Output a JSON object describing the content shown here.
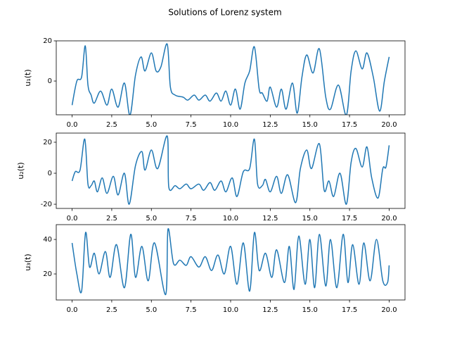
{
  "title": "Solutions of Lorenz system",
  "chart_data": [
    {
      "type": "line",
      "ylabel": "u₁(t)",
      "color": "#1f77b4",
      "xlim": [
        -1,
        21
      ],
      "ylim": [
        -16.8,
        20
      ],
      "xticks": [
        {
          "value": 0,
          "label": "0.0"
        },
        2.5,
        {
          "value": 5,
          "label": "5.0"
        },
        7.5,
        {
          "value": 10,
          "label": "10.0"
        },
        12.5,
        {
          "value": 15,
          "label": "15.0"
        },
        17.5,
        {
          "value": 20,
          "label": "20.0"
        }
      ],
      "yticks": [
        0,
        20
      ],
      "x": [
        0,
        0.3,
        0.6,
        0.83,
        1.0,
        1.2,
        1.4,
        1.8,
        2.2,
        2.5,
        2.9,
        3.3,
        3.65,
        4.0,
        4.35,
        4.6,
        5.0,
        5.3,
        5.6,
        6.0,
        6.2,
        6.5,
        7.0,
        7.3,
        7.7,
        8.0,
        8.4,
        8.7,
        9.1,
        9.4,
        9.7,
        10.0,
        10.3,
        10.6,
        10.9,
        11.2,
        11.5,
        11.8,
        12.0,
        12.3,
        12.5,
        12.9,
        13.2,
        13.5,
        13.9,
        14.2,
        14.5,
        14.8,
        15.2,
        15.6,
        16.0,
        16.3,
        16.8,
        17.3,
        17.6,
        17.9,
        18.3,
        18.6,
        19.0,
        19.4,
        19.7,
        20.0
      ],
      "values": [
        -12,
        0,
        2,
        17.5,
        -2,
        -7,
        -11,
        -5,
        -12,
        -4,
        -13,
        -1,
        -17,
        3,
        12,
        5,
        14,
        5,
        7,
        18.4,
        -3,
        -7,
        -8,
        -9.5,
        -7,
        -9.5,
        -7,
        -10,
        -6,
        -10,
        -5,
        -12,
        -4,
        -14,
        -1,
        5,
        17,
        -4,
        -6,
        -10,
        -3,
        -13,
        -4,
        -14,
        -1,
        -16,
        2,
        13,
        4,
        16,
        -8,
        -14,
        -2,
        -17,
        5,
        15,
        6,
        14,
        2,
        -15,
        0,
        12
      ]
    },
    {
      "type": "line",
      "ylabel": "u₂(t)",
      "color": "#1f77b4",
      "xlim": [
        -1,
        21
      ],
      "ylim": [
        -22.7,
        25.9
      ],
      "xticks": [
        {
          "value": 0,
          "label": "0.0"
        },
        2.5,
        {
          "value": 5,
          "label": "5.0"
        },
        7.5,
        {
          "value": 10,
          "label": "10.0"
        },
        12.5,
        {
          "value": 15,
          "label": "15.0"
        },
        17.5,
        {
          "value": 20,
          "label": "20.0"
        }
      ],
      "yticks": [
        -20,
        0,
        20
      ],
      "x": [
        0,
        0.2,
        0.5,
        0.8,
        1.0,
        1.2,
        1.4,
        1.6,
        1.9,
        2.2,
        2.6,
        2.9,
        3.3,
        3.6,
        4.0,
        4.4,
        4.6,
        5.0,
        5.4,
        6.0,
        6.1,
        6.5,
        6.8,
        7.2,
        7.5,
        8.0,
        8.3,
        8.7,
        9.0,
        9.4,
        9.7,
        10.1,
        10.4,
        10.8,
        11.2,
        11.5,
        11.7,
        12.0,
        12.2,
        12.5,
        12.9,
        13.2,
        13.6,
        14.1,
        14.4,
        14.8,
        15.1,
        15.6,
        15.9,
        16.2,
        16.5,
        16.9,
        17.3,
        17.6,
        17.9,
        18.3,
        18.6,
        18.9,
        19.3,
        19.6,
        19.8,
        20.0
      ],
      "values": [
        -5,
        1,
        2,
        22,
        -7,
        -8,
        -5,
        -12,
        -3,
        -13,
        -2,
        -14,
        0,
        -20,
        5,
        14,
        2,
        15,
        3,
        24,
        -9,
        -8,
        -10,
        -7,
        -10,
        -7,
        -11,
        -6,
        -11,
        -5,
        -12,
        -3,
        -15,
        1,
        3,
        22,
        -7,
        -8,
        -4,
        -12,
        -2,
        -13,
        -1,
        -19,
        3,
        15,
        3,
        19,
        -11,
        -5,
        -15,
        0,
        -20,
        7,
        16,
        4,
        17,
        -3,
        -16,
        3,
        4,
        18
      ]
    },
    {
      "type": "line",
      "ylabel": "u₃(t)",
      "color": "#1f77b4",
      "xlim": [
        -1,
        21
      ],
      "ylim": [
        4.9,
        48.6
      ],
      "xticks": [
        {
          "value": 0,
          "label": "0.0"
        },
        2.5,
        {
          "value": 5,
          "label": "5.0"
        },
        7.5,
        {
          "value": 10,
          "label": "10.0"
        },
        12.5,
        {
          "value": 15,
          "label": "15.0"
        },
        17.5,
        {
          "value": 20,
          "label": "20.0"
        }
      ],
      "yticks": [
        20,
        40
      ],
      "x": [
        0,
        0.3,
        0.6,
        0.85,
        1.1,
        1.4,
        1.7,
        2.1,
        2.4,
        2.8,
        3.3,
        3.7,
        4.0,
        4.4,
        4.8,
        5.2,
        5.9,
        6.05,
        6.4,
        6.8,
        7.2,
        7.5,
        8.0,
        8.4,
        8.8,
        9.2,
        9.6,
        10.0,
        10.4,
        10.8,
        11.2,
        11.5,
        11.8,
        12.2,
        12.6,
        12.9,
        13.4,
        13.7,
        14.0,
        14.3,
        14.7,
        15.0,
        15.3,
        15.6,
        16.0,
        16.3,
        16.7,
        17.1,
        17.4,
        17.7,
        18.1,
        18.4,
        18.8,
        19.2,
        19.6,
        19.9,
        20.0
      ],
      "values": [
        38,
        20,
        10,
        44,
        24,
        32,
        20,
        33,
        18,
        37,
        12,
        43,
        18,
        36,
        16,
        38,
        8,
        46,
        26,
        28,
        25,
        30,
        24,
        30,
        22,
        31,
        20,
        36,
        14,
        38,
        10,
        44,
        22,
        32,
        18,
        34,
        15,
        36,
        11,
        42,
        14,
        40,
        12,
        43,
        13,
        40,
        12,
        43,
        15,
        37,
        14,
        38,
        16,
        40,
        16,
        15,
        25
      ]
    }
  ]
}
